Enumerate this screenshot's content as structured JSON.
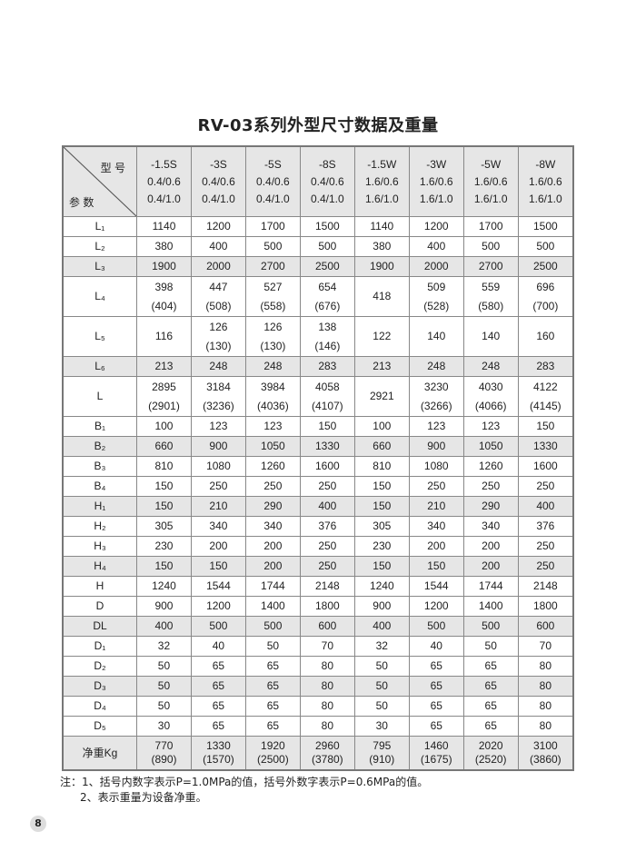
{
  "title": "RV-03系列外型尺寸数据及重量",
  "table": {
    "corner_model": "型 号",
    "corner_param": "参 数",
    "columns": [
      "-1.5S\n0.4/0.6\n0.4/1.0",
      "-3S\n0.4/0.6\n0.4/1.0",
      "-5S\n0.4/0.6\n0.4/1.0",
      "-8S\n0.4/0.6\n0.4/1.0",
      "-1.5W\n1.6/0.6\n1.6/1.0",
      "-3W\n1.6/0.6\n1.6/1.0",
      "-5W\n1.6/0.6\n1.6/1.0",
      "-8W\n1.6/0.6\n1.6/1.0"
    ],
    "rows": [
      {
        "param": "L₁",
        "shade": false,
        "values": [
          "1140",
          "1200",
          "1700",
          "1500",
          "1140",
          "1200",
          "1700",
          "1500"
        ]
      },
      {
        "param": "L₂",
        "shade": false,
        "values": [
          "380",
          "400",
          "500",
          "500",
          "380",
          "400",
          "500",
          "500"
        ]
      },
      {
        "param": "L₃",
        "shade": true,
        "values": [
          "1900",
          "2000",
          "2700",
          "2500",
          "1900",
          "2000",
          "2700",
          "2500"
        ]
      },
      {
        "param": "L₄",
        "shade": false,
        "values": [
          "398\n(404)",
          "447\n(508)",
          "527\n(558)",
          "654\n(676)",
          "418",
          "509\n(528)",
          "559\n(580)",
          "696\n(700)"
        ]
      },
      {
        "param": "L₅",
        "shade": false,
        "values": [
          "116",
          "126\n(130)",
          "126\n(130)",
          "138\n(146)",
          "122",
          "140",
          "140",
          "160"
        ]
      },
      {
        "param": "L₆",
        "shade": true,
        "values": [
          "213",
          "248",
          "248",
          "283",
          "213",
          "248",
          "248",
          "283"
        ]
      },
      {
        "param": "L",
        "shade": false,
        "values": [
          "2895\n(2901)",
          "3184\n(3236)",
          "3984\n(4036)",
          "4058\n(4107)",
          "2921",
          "3230\n(3266)",
          "4030\n(4066)",
          "4122\n(4145)"
        ]
      },
      {
        "param": "B₁",
        "shade": false,
        "values": [
          "100",
          "123",
          "123",
          "150",
          "100",
          "123",
          "123",
          "150"
        ]
      },
      {
        "param": "B₂",
        "shade": true,
        "values": [
          "660",
          "900",
          "1050",
          "1330",
          "660",
          "900",
          "1050",
          "1330"
        ]
      },
      {
        "param": "B₃",
        "shade": false,
        "values": [
          "810",
          "1080",
          "1260",
          "1600",
          "810",
          "1080",
          "1260",
          "1600"
        ]
      },
      {
        "param": "B₄",
        "shade": false,
        "values": [
          "150",
          "250",
          "250",
          "250",
          "150",
          "250",
          "250",
          "250"
        ]
      },
      {
        "param": "H₁",
        "shade": true,
        "values": [
          "150",
          "210",
          "290",
          "400",
          "150",
          "210",
          "290",
          "400"
        ]
      },
      {
        "param": "H₂",
        "shade": false,
        "values": [
          "305",
          "340",
          "340",
          "376",
          "305",
          "340",
          "340",
          "376"
        ]
      },
      {
        "param": "H₃",
        "shade": false,
        "values": [
          "230",
          "200",
          "200",
          "250",
          "230",
          "200",
          "200",
          "250"
        ]
      },
      {
        "param": "H₄",
        "shade": true,
        "values": [
          "150",
          "150",
          "200",
          "250",
          "150",
          "150",
          "200",
          "250"
        ]
      },
      {
        "param": "H",
        "shade": false,
        "values": [
          "1240",
          "1544",
          "1744",
          "2148",
          "1240",
          "1544",
          "1744",
          "2148"
        ]
      },
      {
        "param": "D",
        "shade": false,
        "values": [
          "900",
          "1200",
          "1400",
          "1800",
          "900",
          "1200",
          "1400",
          "1800"
        ]
      },
      {
        "param": "DL",
        "shade": true,
        "values": [
          "400",
          "500",
          "500",
          "600",
          "400",
          "500",
          "500",
          "600"
        ]
      },
      {
        "param": "D₁",
        "shade": false,
        "values": [
          "32",
          "40",
          "50",
          "70",
          "32",
          "40",
          "50",
          "70"
        ]
      },
      {
        "param": "D₂",
        "shade": false,
        "values": [
          "50",
          "65",
          "65",
          "80",
          "50",
          "65",
          "65",
          "80"
        ]
      },
      {
        "param": "D₃",
        "shade": true,
        "values": [
          "50",
          "65",
          "65",
          "80",
          "50",
          "65",
          "65",
          "80"
        ]
      },
      {
        "param": "D₄",
        "shade": false,
        "values": [
          "50",
          "65",
          "65",
          "80",
          "50",
          "65",
          "65",
          "80"
        ]
      },
      {
        "param": "D₅",
        "shade": false,
        "values": [
          "30",
          "65",
          "65",
          "80",
          "30",
          "65",
          "65",
          "80"
        ]
      },
      {
        "param": "净重Kg",
        "shade": true,
        "weight": true,
        "values": [
          "770\n(890)",
          "1330\n(1570)",
          "1920\n(2500)",
          "2960\n(3780)",
          "795\n(910)",
          "1460\n(1675)",
          "2020\n(2520)",
          "3100\n(3860)"
        ]
      }
    ]
  },
  "notes": {
    "note1": "注：1、括号内数字表示P=1.0MPa的值，括号外数字表示P=0.6MPa的值。",
    "note2": "2、表示重量为设备净重。"
  },
  "page_number": "8"
}
